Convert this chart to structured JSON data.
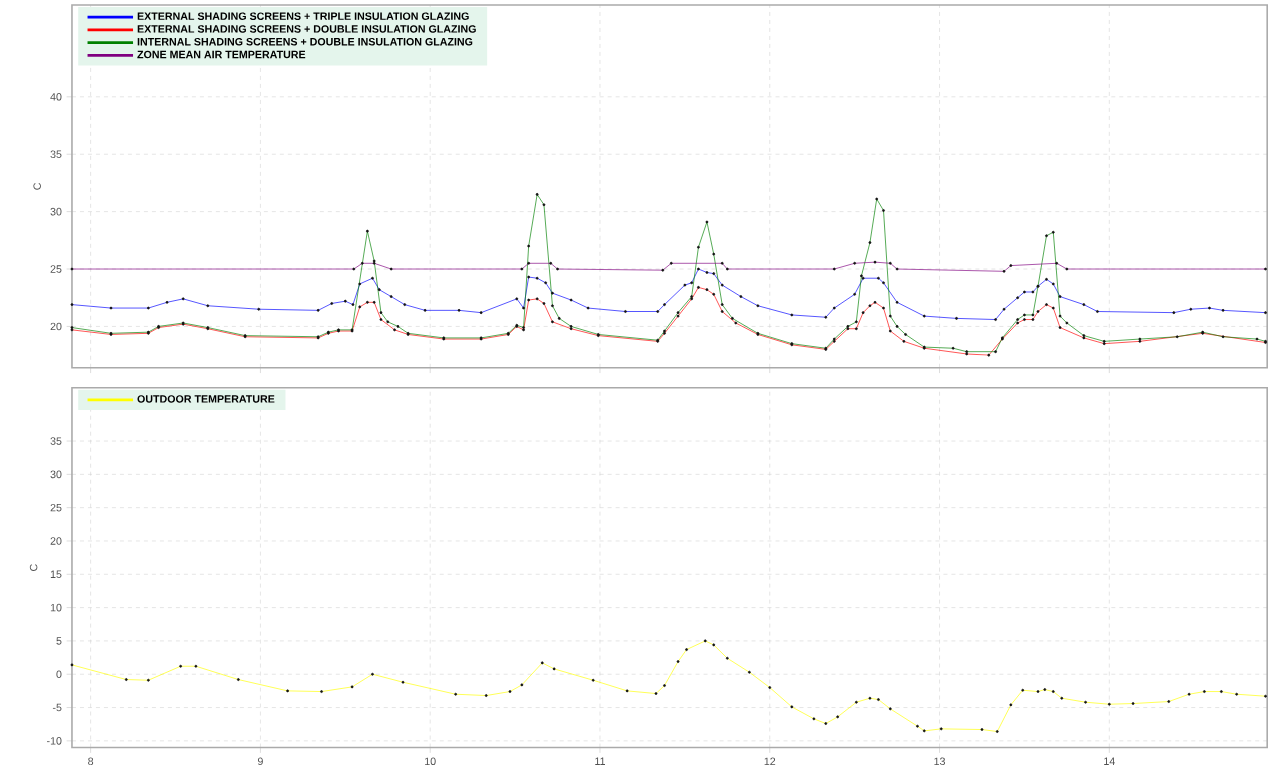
{
  "chart_data": [
    {
      "type": "line",
      "ylabel": "C",
      "xlim": [
        7.89,
        14.93
      ],
      "ylim": [
        16.4,
        48
      ],
      "xticks": [
        8,
        9,
        10,
        11,
        12,
        13,
        14
      ],
      "yticks": [
        20,
        25,
        30,
        35,
        40
      ],
      "tick_labels": "y",
      "grid": true,
      "legend": "top left",
      "marker": "circle",
      "series": [
        {
          "name": "EXTERNAL SHADING SCREENS + TRIPLE INSULATION GLAZING",
          "color": "#0000ff",
          "x": [
            7.89,
            8.12,
            8.34,
            8.45,
            8.545,
            8.69,
            8.99,
            9.34,
            9.42,
            9.5,
            9.545,
            9.585,
            9.66,
            9.7,
            9.77,
            9.85,
            9.97,
            10.17,
            10.3,
            10.51,
            10.55,
            10.58,
            10.63,
            10.68,
            10.72,
            10.83,
            10.93,
            11.15,
            11.34,
            11.38,
            11.5,
            11.54,
            11.58,
            11.63,
            11.67,
            11.72,
            11.83,
            11.93,
            12.13,
            12.33,
            12.38,
            12.5,
            12.55,
            12.64,
            12.67,
            12.75,
            12.91,
            13.1,
            13.33,
            13.38,
            13.46,
            13.5,
            13.55,
            13.58,
            13.63,
            13.67,
            13.71,
            13.85,
            13.93,
            14.38,
            14.48,
            14.59,
            14.67,
            14.92
          ],
          "values": [
            21.9,
            21.6,
            21.6,
            22.1,
            22.4,
            21.8,
            21.5,
            21.4,
            22.0,
            22.2,
            21.9,
            23.7,
            24.2,
            23.2,
            22.6,
            21.9,
            21.4,
            21.4,
            21.2,
            22.4,
            21.6,
            24.3,
            24.2,
            23.8,
            22.9,
            22.3,
            21.6,
            21.3,
            21.3,
            21.9,
            23.6,
            23.8,
            25.0,
            24.7,
            24.6,
            23.6,
            22.6,
            21.8,
            21.0,
            20.8,
            21.6,
            22.8,
            24.2,
            24.2,
            23.8,
            22.1,
            20.9,
            20.7,
            20.6,
            21.5,
            22.5,
            23.0,
            23.0,
            23.5,
            24.1,
            23.7,
            22.6,
            21.9,
            21.3,
            21.2,
            21.5,
            21.6,
            21.4,
            21.2
          ]
        },
        {
          "name": "EXTERNAL SHADING SCREENS + DOUBLE INSULATION GLAZING",
          "color": "#ff0000",
          "x": [
            7.89,
            8.12,
            8.34,
            8.4,
            8.545,
            8.69,
            8.91,
            9.34,
            9.4,
            9.46,
            9.54,
            9.585,
            9.63,
            9.67,
            9.71,
            9.79,
            9.87,
            10.08,
            10.3,
            10.46,
            10.51,
            10.55,
            10.58,
            10.63,
            10.67,
            10.72,
            10.83,
            10.99,
            11.34,
            11.38,
            11.46,
            11.54,
            11.58,
            11.63,
            11.67,
            11.72,
            11.8,
            11.93,
            12.13,
            12.33,
            12.38,
            12.46,
            12.51,
            12.55,
            12.59,
            12.62,
            12.67,
            12.71,
            12.79,
            12.91,
            13.16,
            13.29,
            13.37,
            13.46,
            13.5,
            13.55,
            13.58,
            13.63,
            13.67,
            13.71,
            13.85,
            13.97,
            14.18,
            14.55,
            14.92
          ],
          "values": [
            19.7,
            19.3,
            19.4,
            19.9,
            20.2,
            19.8,
            19.1,
            19.0,
            19.4,
            19.6,
            19.6,
            21.7,
            22.1,
            22.1,
            20.6,
            19.7,
            19.3,
            18.9,
            18.9,
            19.3,
            20.0,
            19.7,
            22.3,
            22.4,
            22.0,
            20.4,
            19.8,
            19.2,
            18.7,
            19.4,
            20.9,
            22.4,
            23.4,
            23.2,
            22.8,
            21.3,
            20.3,
            19.3,
            18.4,
            18.0,
            18.7,
            19.8,
            19.8,
            21.2,
            21.8,
            22.1,
            21.6,
            19.6,
            18.7,
            18.1,
            17.6,
            17.5,
            18.9,
            20.3,
            20.6,
            20.6,
            21.3,
            21.9,
            21.6,
            19.9,
            19.0,
            18.5,
            18.7,
            19.4,
            18.6
          ]
        },
        {
          "name": "INTERNAL SHADING SCREENS + DOUBLE INSULATION GLAZING",
          "color": "#008000",
          "x": [
            7.89,
            8.12,
            8.34,
            8.4,
            8.545,
            8.69,
            8.91,
            9.34,
            9.4,
            9.46,
            9.54,
            9.63,
            9.67,
            9.71,
            9.75,
            9.81,
            9.87,
            10.08,
            10.3,
            10.46,
            10.51,
            10.55,
            10.58,
            10.63,
            10.67,
            10.72,
            10.76,
            10.83,
            10.99,
            11.34,
            11.38,
            11.46,
            11.54,
            11.58,
            11.63,
            11.67,
            11.72,
            11.78,
            11.93,
            12.13,
            12.33,
            12.38,
            12.46,
            12.51,
            12.54,
            12.59,
            12.63,
            12.67,
            12.71,
            12.75,
            12.8,
            12.91,
            13.08,
            13.16,
            13.33,
            13.37,
            13.46,
            13.5,
            13.55,
            13.58,
            13.63,
            13.67,
            13.71,
            13.75,
            13.85,
            13.97,
            14.18,
            14.4,
            14.55,
            14.67,
            14.87,
            14.92
          ],
          "values": [
            19.9,
            19.4,
            19.5,
            20.0,
            20.3,
            19.9,
            19.2,
            19.1,
            19.5,
            19.7,
            19.7,
            28.3,
            25.7,
            21.2,
            20.4,
            20.0,
            19.4,
            19.0,
            19.0,
            19.4,
            20.1,
            19.9,
            27.0,
            31.5,
            30.6,
            21.8,
            20.7,
            20.0,
            19.3,
            18.8,
            19.6,
            21.2,
            22.6,
            26.9,
            29.1,
            26.3,
            21.9,
            20.7,
            19.4,
            18.5,
            18.1,
            18.9,
            20.0,
            20.4,
            24.4,
            27.3,
            31.1,
            30.1,
            20.9,
            20.0,
            19.3,
            18.2,
            18.1,
            17.8,
            17.8,
            19.0,
            20.6,
            21.0,
            21.0,
            23.5,
            27.9,
            28.2,
            20.9,
            20.3,
            19.2,
            18.7,
            18.9,
            19.1,
            19.5,
            19.1,
            18.9,
            18.7
          ]
        },
        {
          "name": "ZONE MEAN AIR TEMPERATURE",
          "color": "#800080",
          "x": [
            7.89,
            9.55,
            9.6,
            9.67,
            9.77,
            10.54,
            10.58,
            10.71,
            10.75,
            11.37,
            11.42,
            11.72,
            11.75,
            12.38,
            12.5,
            12.62,
            12.71,
            12.75,
            13.38,
            13.42,
            13.69,
            13.75,
            14.92
          ],
          "values": [
            25,
            25,
            25.5,
            25.5,
            25,
            25,
            25.5,
            25.5,
            25,
            24.9,
            25.5,
            25.5,
            25,
            25,
            25.5,
            25.6,
            25.5,
            25,
            24.8,
            25.3,
            25.5,
            25,
            25
          ]
        }
      ]
    },
    {
      "type": "line",
      "ylabel": "C",
      "xlim": [
        7.89,
        14.93
      ],
      "ylim": [
        -11,
        43
      ],
      "xticks": [
        8,
        9,
        10,
        11,
        12,
        13,
        14
      ],
      "yticks": [
        -10,
        -5,
        0,
        5,
        10,
        15,
        20,
        25,
        30,
        35
      ],
      "grid": true,
      "legend": "top left",
      "marker": "circle",
      "series": [
        {
          "name": "OUTDOOR TEMPERATURE",
          "color": "#ffff00",
          "x": [
            7.89,
            8.21,
            8.34,
            8.53,
            8.62,
            8.87,
            9.16,
            9.36,
            9.54,
            9.66,
            9.84,
            10.15,
            10.33,
            10.47,
            10.54,
            10.66,
            10.73,
            10.96,
            11.16,
            11.33,
            11.38,
            11.46,
            11.51,
            11.62,
            11.67,
            11.75,
            11.88,
            12.0,
            12.13,
            12.26,
            12.33,
            12.4,
            12.51,
            12.59,
            12.64,
            12.71,
            12.87,
            12.91,
            13.01,
            13.25,
            13.34,
            13.42,
            13.49,
            13.58,
            13.62,
            13.67,
            13.72,
            13.86,
            14.0,
            14.14,
            14.35,
            14.47,
            14.56,
            14.66,
            14.75,
            14.92
          ],
          "values": [
            1.4,
            -0.8,
            -0.9,
            1.2,
            1.2,
            -0.8,
            -2.5,
            -2.6,
            -1.9,
            0,
            -1.2,
            -3.0,
            -3.2,
            -2.6,
            -1.6,
            1.7,
            0.8,
            -0.9,
            -2.5,
            -2.9,
            -1.7,
            1.9,
            3.7,
            5.0,
            4.4,
            2.4,
            0.3,
            -2.0,
            -4.9,
            -6.7,
            -7.4,
            -6.4,
            -4.2,
            -3.6,
            -3.8,
            -5.2,
            -7.8,
            -8.5,
            -8.2,
            -8.3,
            -8.6,
            -4.6,
            -2.4,
            -2.6,
            -2.3,
            -2.6,
            -3.6,
            -4.2,
            -4.5,
            -4.4,
            -4.1,
            -3.0,
            -2.6,
            -2.6,
            -3.0,
            -3.3
          ]
        }
      ]
    }
  ]
}
